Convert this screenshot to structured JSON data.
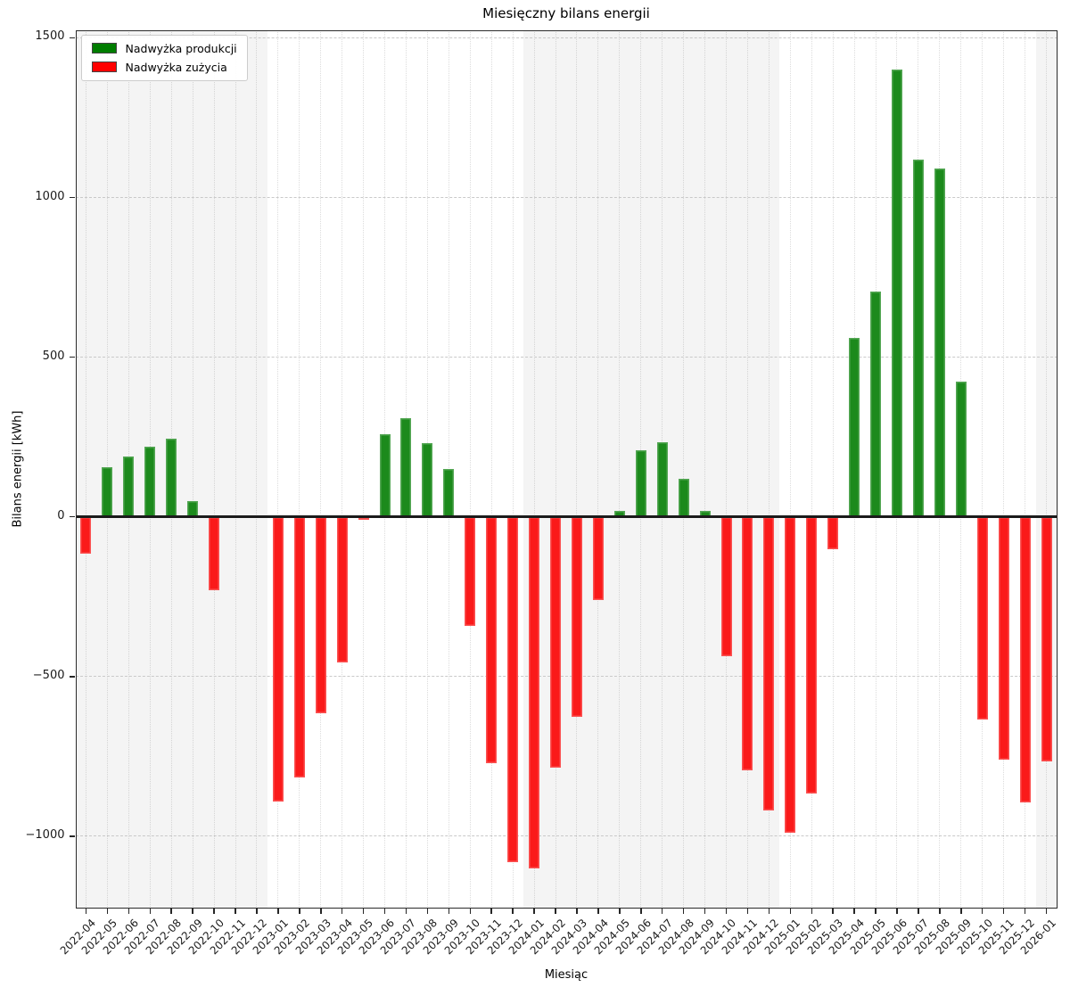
{
  "title": "Miesięczny bilans energii",
  "legend": {
    "items": [
      {
        "label": "Nadwyżka produkcji",
        "color": "#007d00"
      },
      {
        "label": "Nadwyżka zużycia",
        "color": "#ff0000"
      }
    ]
  },
  "chart_data": {
    "type": "bar",
    "title": "Miesięczny bilans energii",
    "xlabel": "Miesiąc",
    "ylabel": "Bilans energii [kWh]",
    "categories": [
      "2022-04",
      "2022-05",
      "2022-06",
      "2022-07",
      "2022-08",
      "2022-09",
      "2022-10",
      "2022-11",
      "2022-12",
      "2023-01",
      "2023-02",
      "2023-03",
      "2023-04",
      "2023-05",
      "2023-06",
      "2023-07",
      "2023-08",
      "2023-09",
      "2023-10",
      "2023-11",
      "2023-12",
      "2024-01",
      "2024-02",
      "2024-03",
      "2024-04",
      "2024-05",
      "2024-06",
      "2024-07",
      "2024-08",
      "2024-09",
      "2024-10",
      "2024-11",
      "2024-12",
      "2025-01",
      "2025-02",
      "2025-03",
      "2025-04",
      "2025-05",
      "2025-06",
      "2025-07",
      "2025-08",
      "2025-09",
      "2025-10",
      "2025-11",
      "2025-12",
      "2026-01"
    ],
    "values": [
      -115,
      155,
      190,
      220,
      245,
      50,
      -230,
      0,
      0,
      -890,
      -815,
      -615,
      -455,
      -10,
      260,
      310,
      230,
      150,
      -340,
      -770,
      -1080,
      -1100,
      -785,
      -625,
      -260,
      20,
      210,
      235,
      120,
      20,
      -435,
      -795,
      -920,
      -990,
      -865,
      -100,
      560,
      705,
      1400,
      1120,
      1090,
      425,
      -635,
      -760,
      -895,
      -765
    ],
    "positive_label": "Nadwyżka produkcji",
    "negative_label": "Nadwyżka zużycia",
    "positive_color": "#1c8a1c",
    "negative_color": "#fa1a1a",
    "ylim": [
      -1225,
      1525
    ],
    "yticks": [
      -1000,
      -500,
      0,
      500,
      1000,
      1500
    ],
    "grid": true,
    "legend_position": "upper-left",
    "year_bands": {
      "shaded_years": [
        "2022",
        "2024",
        "2026"
      ],
      "color": "#f4f4f4"
    }
  }
}
